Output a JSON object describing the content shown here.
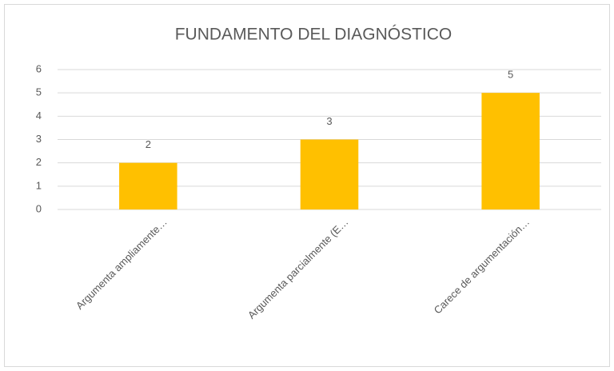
{
  "chart_data": {
    "type": "bar",
    "title": "FUNDAMENTO DEL DIAGNÓSTICO",
    "categories": [
      "Argumenta ampliamente…",
      "Argumenta parcialmente (E…",
      "Carece de argumentación…"
    ],
    "values": [
      2,
      3,
      5
    ],
    "color": "#ffc000",
    "ylim": [
      0,
      6
    ],
    "yticks": [
      0,
      1,
      2,
      3,
      4,
      5,
      6
    ],
    "grid": true,
    "data_labels": true
  }
}
